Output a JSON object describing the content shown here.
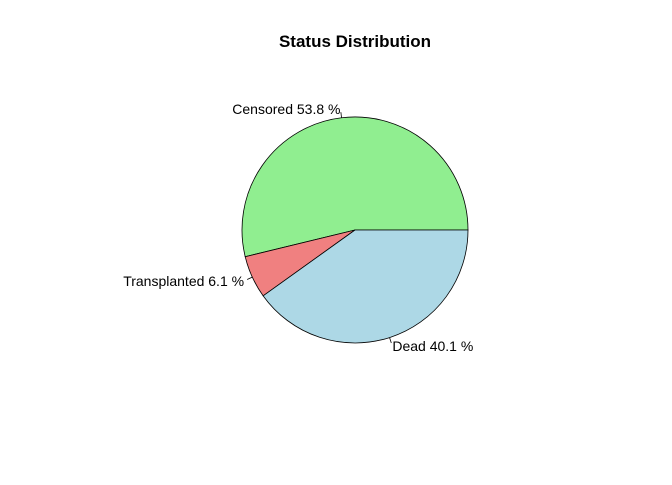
{
  "chart_data": {
    "type": "pie",
    "title": "Status Distribution",
    "slices": [
      {
        "category": "Censored",
        "percent": 53.8,
        "label": "Censored 53.8 %",
        "color": "#90EE90"
      },
      {
        "category": "Transplanted",
        "percent": 6.1,
        "label": "Transplanted 6.1 %",
        "color": "#F08080"
      },
      {
        "category": "Dead",
        "percent": 40.1,
        "label": "Dead 40.1 %",
        "color": "#ADD8E6"
      }
    ],
    "start": "3 o'clock",
    "direction": "counterclockwise",
    "legend": "none"
  }
}
